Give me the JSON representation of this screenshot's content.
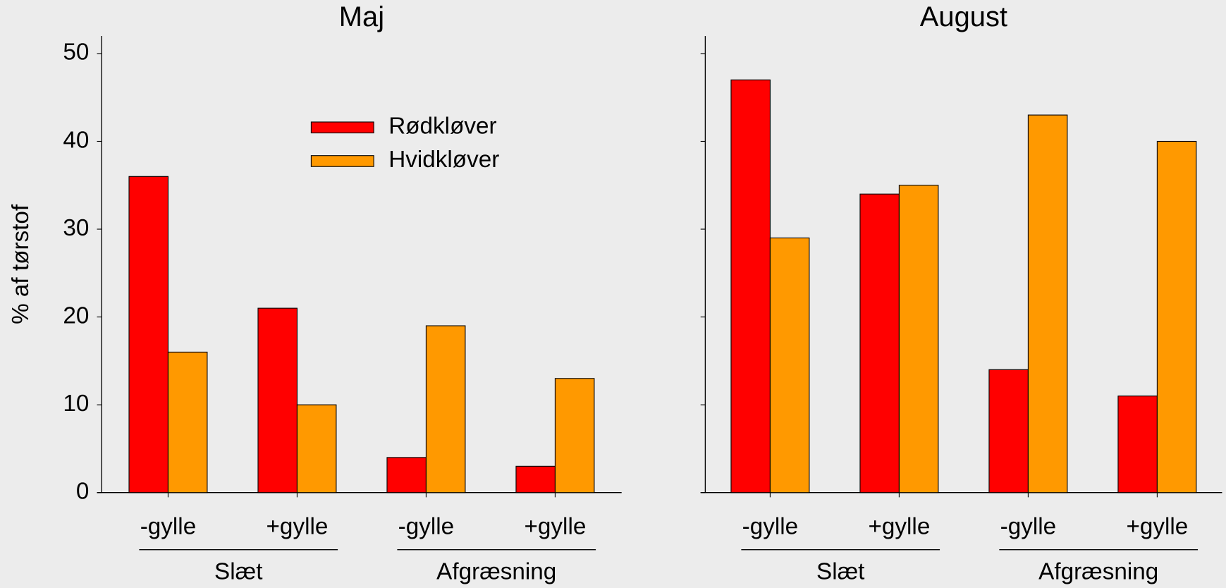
{
  "chart_data": [
    {
      "type": "bar",
      "title": "Maj",
      "y_label": "% af tørstof",
      "categories": [
        "-gylle",
        "+gylle",
        "-gylle",
        "+gylle"
      ],
      "groups": [
        "Slæt",
        "Afgræsning"
      ],
      "series": [
        {
          "name": "Rødkløver",
          "color": "#ff0000",
          "values": [
            36,
            21,
            4,
            3
          ]
        },
        {
          "name": "Hvidkløver",
          "color": "#ff9900",
          "values": [
            16,
            10,
            19,
            13
          ]
        }
      ],
      "ylim": [
        0,
        52
      ],
      "yticks": [
        0,
        10,
        20,
        30,
        40,
        50
      ],
      "legend": "upper center"
    },
    {
      "type": "bar",
      "title": "August",
      "categories": [
        "-gylle",
        "+gylle",
        "-gylle",
        "+gylle"
      ],
      "groups": [
        "Slæt",
        "Afgræsning"
      ],
      "series": [
        {
          "name": "Rødkløver",
          "color": "#ff0000",
          "values": [
            47,
            34,
            14,
            11
          ]
        },
        {
          "name": "Hvidkløver",
          "color": "#ff9900",
          "values": [
            29,
            35,
            43,
            40
          ]
        }
      ],
      "ylim": [
        0,
        52
      ],
      "yticks": [
        0,
        10,
        20,
        30,
        40,
        50
      ]
    }
  ]
}
